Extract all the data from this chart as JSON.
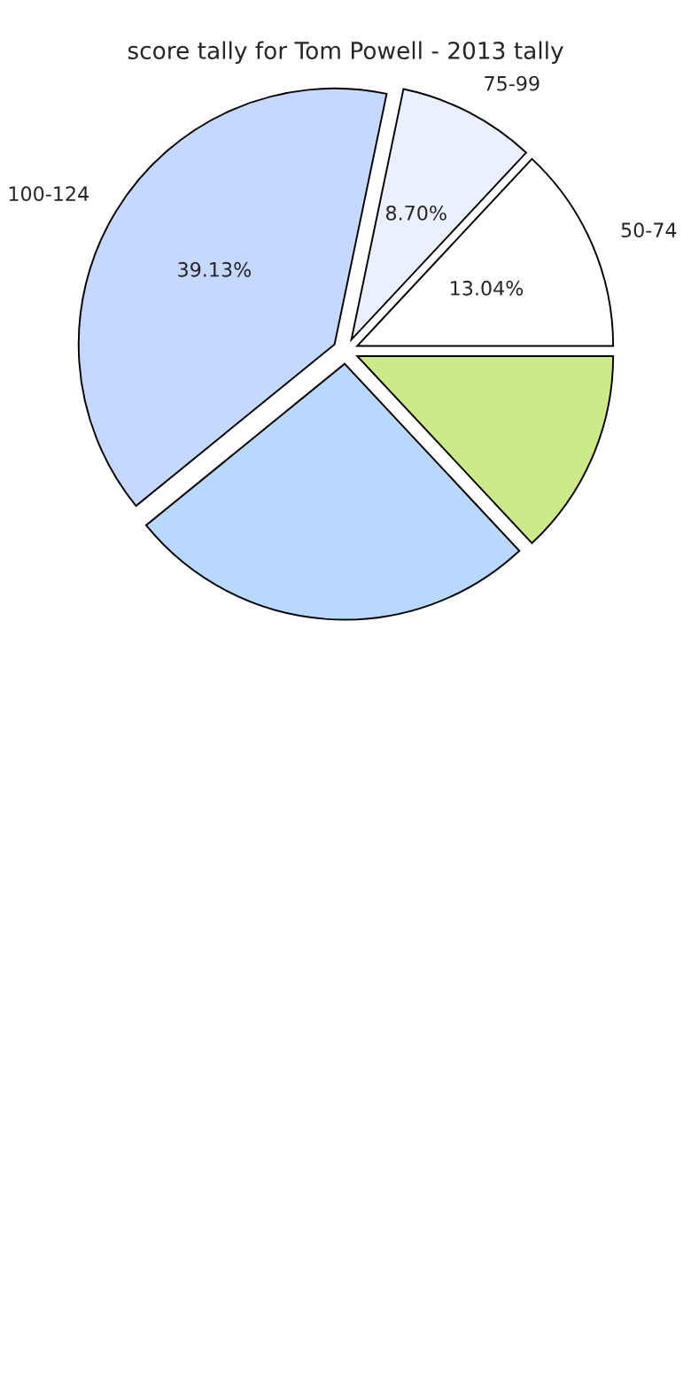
{
  "chart_data": {
    "type": "pie",
    "title": "score tally for Tom Powell - 2013 tally",
    "categories": [
      "50-74",
      "75-99",
      "100-124",
      null,
      null
    ],
    "values": [
      13.04,
      8.7,
      39.13,
      26.09,
      13.04
    ],
    "value_labels": [
      "13.04%",
      "8.70%",
      "39.13%",
      null,
      null
    ],
    "colors": [
      "#ffffff",
      "#eaf0ff",
      "#c5d8ff",
      "#b8d8ff",
      "#cdea8a"
    ]
  }
}
